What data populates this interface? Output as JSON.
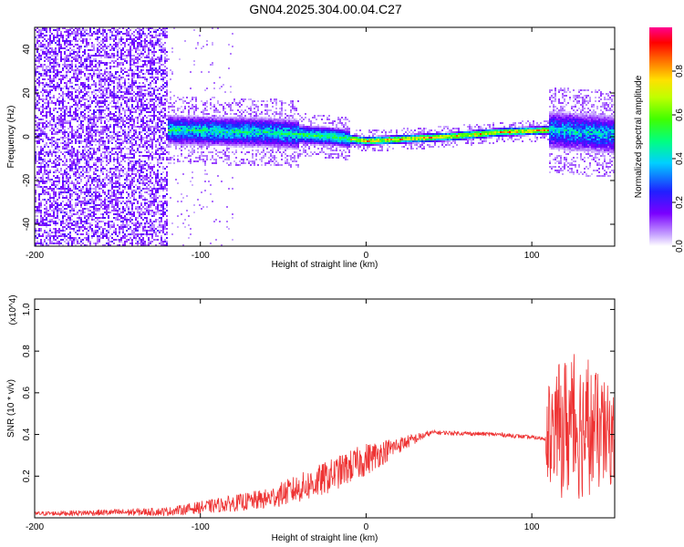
{
  "title": "GN04.2025.304.00.04.C27",
  "chart_data": [
    {
      "type": "heatmap",
      "name": "spectrogram",
      "xlabel": "Height of straight line (km)",
      "ylabel": "Frequency (Hz)",
      "xlim": [
        -200,
        150
      ],
      "ylim": [
        -50,
        50
      ],
      "xticks": [
        -200,
        -100,
        0,
        100
      ],
      "yticks": [
        -40,
        -20,
        0,
        20,
        40
      ],
      "colorbar": {
        "label": "Normalized spectral amplitude",
        "range": [
          0,
          1
        ],
        "ticks": [
          "0.0",
          "0.2",
          "0.4",
          "0.6",
          "0.8"
        ]
      },
      "features": {
        "noise_region": [
          -200,
          -120
        ],
        "band_region": [
          -120,
          150
        ],
        "band_center_hz": [
          {
            "x": -120,
            "f": 3
          },
          {
            "x": -60,
            "f": 2
          },
          {
            "x": -20,
            "f": 0
          },
          {
            "x": 0,
            "f": -2
          },
          {
            "x": 50,
            "f": 0
          },
          {
            "x": 80,
            "f": 2
          },
          {
            "x": 110,
            "f": 3
          },
          {
            "x": 150,
            "f": 1
          }
        ]
      }
    },
    {
      "type": "line",
      "name": "snr",
      "xlabel": "Height of straight line (km)",
      "ylabel": "SNR (10 * v/v)",
      "yscale_label": "(x10^4)",
      "xlim": [
        -200,
        150
      ],
      "ylim": [
        0,
        1.05
      ],
      "xticks": [
        -200,
        -100,
        0,
        100
      ],
      "yticks": [
        0.2,
        0.4,
        0.6,
        0.8,
        1.0
      ],
      "color": "#ee3333",
      "envelope_x1e4": [
        {
          "x": -200,
          "mean": 0.02,
          "noise": 0.01
        },
        {
          "x": -120,
          "mean": 0.03,
          "noise": 0.02
        },
        {
          "x": -100,
          "mean": 0.05,
          "noise": 0.03
        },
        {
          "x": -60,
          "mean": 0.09,
          "noise": 0.05
        },
        {
          "x": -30,
          "mean": 0.17,
          "noise": 0.08
        },
        {
          "x": 0,
          "mean": 0.28,
          "noise": 0.08
        },
        {
          "x": 20,
          "mean": 0.35,
          "noise": 0.04
        },
        {
          "x": 40,
          "mean": 0.41,
          "noise": 0.01
        },
        {
          "x": 80,
          "mean": 0.4,
          "noise": 0.01
        },
        {
          "x": 108,
          "mean": 0.38,
          "noise": 0.01
        },
        {
          "x": 110,
          "mean": 0.4,
          "noise": 0.28
        },
        {
          "x": 125,
          "mean": 0.45,
          "noise": 0.38
        },
        {
          "x": 150,
          "mean": 0.38,
          "noise": 0.22
        }
      ]
    }
  ]
}
